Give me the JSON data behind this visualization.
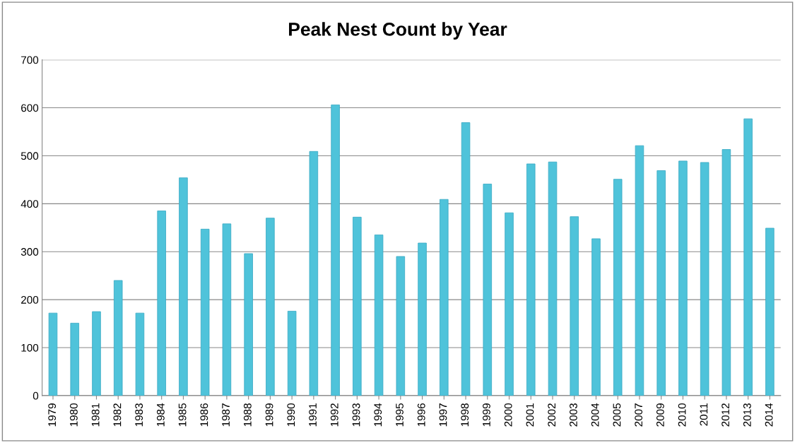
{
  "chart_data": {
    "type": "bar",
    "title": "Peak Nest Count by Year",
    "categories": [
      "1979",
      "1980",
      "1981",
      "1982",
      "1983",
      "1984",
      "1985",
      "1986",
      "1987",
      "1988",
      "1989",
      "1990",
      "1991",
      "1992",
      "1993",
      "1994",
      "1995",
      "1996",
      "1997",
      "1998",
      "1999",
      "2000",
      "2001",
      "2002",
      "2003",
      "2004",
      "2005",
      "2007",
      "2009",
      "2010",
      "2011",
      "2012",
      "2013",
      "2014"
    ],
    "values": [
      172,
      151,
      175,
      240,
      172,
      385,
      454,
      347,
      358,
      296,
      370,
      176,
      509,
      606,
      372,
      335,
      290,
      318,
      409,
      569,
      441,
      381,
      483,
      487,
      373,
      327,
      451,
      521,
      469,
      489,
      486,
      513,
      577,
      349
    ],
    "color": "#4fc3da",
    "ylim": [
      0,
      700
    ],
    "yticks": [
      0,
      100,
      200,
      300,
      400,
      500,
      600,
      700
    ],
    "grid": "y"
  }
}
